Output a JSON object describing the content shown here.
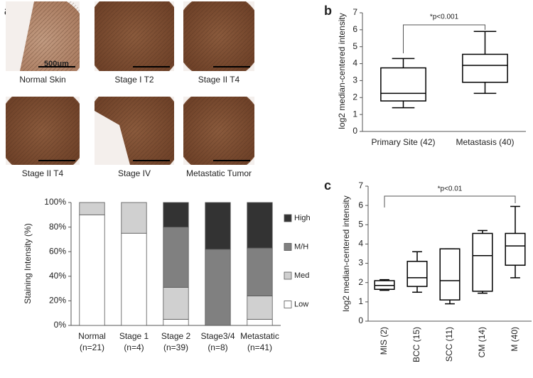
{
  "figure": {
    "panel_labels": [
      "a",
      "b",
      "c"
    ],
    "images": [
      "Normal Skin",
      "Stage I T2",
      "Stage II T4",
      "Stage II T4",
      "Stage IV",
      "Metastatic Tumor"
    ],
    "scale_bar": "500um"
  },
  "chart_data": [
    {
      "type": "stacked_bar",
      "ylabel": "Staining Intensity (%)",
      "categories": [
        "Normal\n(n=21)",
        "Stage 1\n(n=4)",
        "Stage 2\n(n=39)",
        "Stage3/4\n(n=8)",
        "Metastatic\n(n=41)"
      ],
      "series": [
        {
          "name": "Low",
          "color": "#ffffff",
          "values": [
            90,
            75,
            5,
            0,
            5
          ]
        },
        {
          "name": "Med",
          "color": "#d0d0d0",
          "values": [
            10,
            25,
            26,
            0,
            19
          ]
        },
        {
          "name": "M/H",
          "color": "#808080",
          "values": [
            0,
            0,
            49,
            62,
            39
          ]
        },
        {
          "name": "High",
          "color": "#333333",
          "values": [
            0,
            0,
            20,
            38,
            37
          ]
        }
      ],
      "ylim": [
        0,
        100
      ],
      "yticks": [
        {
          "value": 0,
          "label": "0%"
        },
        {
          "value": 20,
          "label": "20%"
        },
        {
          "value": 40,
          "label": "40%"
        },
        {
          "value": 60,
          "label": "60%"
        },
        {
          "value": 80,
          "label": "80%"
        },
        {
          "value": 100,
          "label": "100%"
        }
      ]
    },
    {
      "type": "box",
      "ylabel": "log2 median-centered intensity",
      "annotation": "*p<0.001",
      "categories": [
        "Primary Site (42)",
        "Metastasis (40)"
      ],
      "boxes": [
        {
          "min": 1.4,
          "q1": 1.8,
          "median": 2.25,
          "q3": 3.75,
          "max": 4.3
        },
        {
          "min": 2.25,
          "q1": 2.9,
          "median": 3.9,
          "q3": 4.55,
          "max": 5.9
        }
      ],
      "ylim": [
        0,
        7
      ],
      "yticks": [
        0,
        1,
        2,
        3,
        4,
        5,
        6,
        7
      ]
    },
    {
      "type": "box",
      "ylabel": "log2 median-centered intensity",
      "annotation": "*p<0.01",
      "categories": [
        "MIS (2)",
        "BCC (15)",
        "SCC (11)",
        "CM (14)",
        "M (40)"
      ],
      "boxes": [
        {
          "min": 1.6,
          "q1": 1.65,
          "median": 1.85,
          "q3": 2.1,
          "max": 2.15
        },
        {
          "min": 1.5,
          "q1": 1.8,
          "median": 2.25,
          "q3": 3.1,
          "max": 3.6
        },
        {
          "min": 0.9,
          "q1": 1.1,
          "median": 2.1,
          "q3": 3.75,
          "max": 3.75
        },
        {
          "min": 1.45,
          "q1": 1.55,
          "median": 3.4,
          "q3": 4.55,
          "max": 4.7
        },
        {
          "min": 2.25,
          "q1": 2.9,
          "median": 3.9,
          "q3": 4.55,
          "max": 5.95
        }
      ],
      "ylim": [
        0,
        7
      ],
      "yticks": [
        0,
        1,
        2,
        3,
        4,
        5,
        6,
        7
      ]
    }
  ]
}
